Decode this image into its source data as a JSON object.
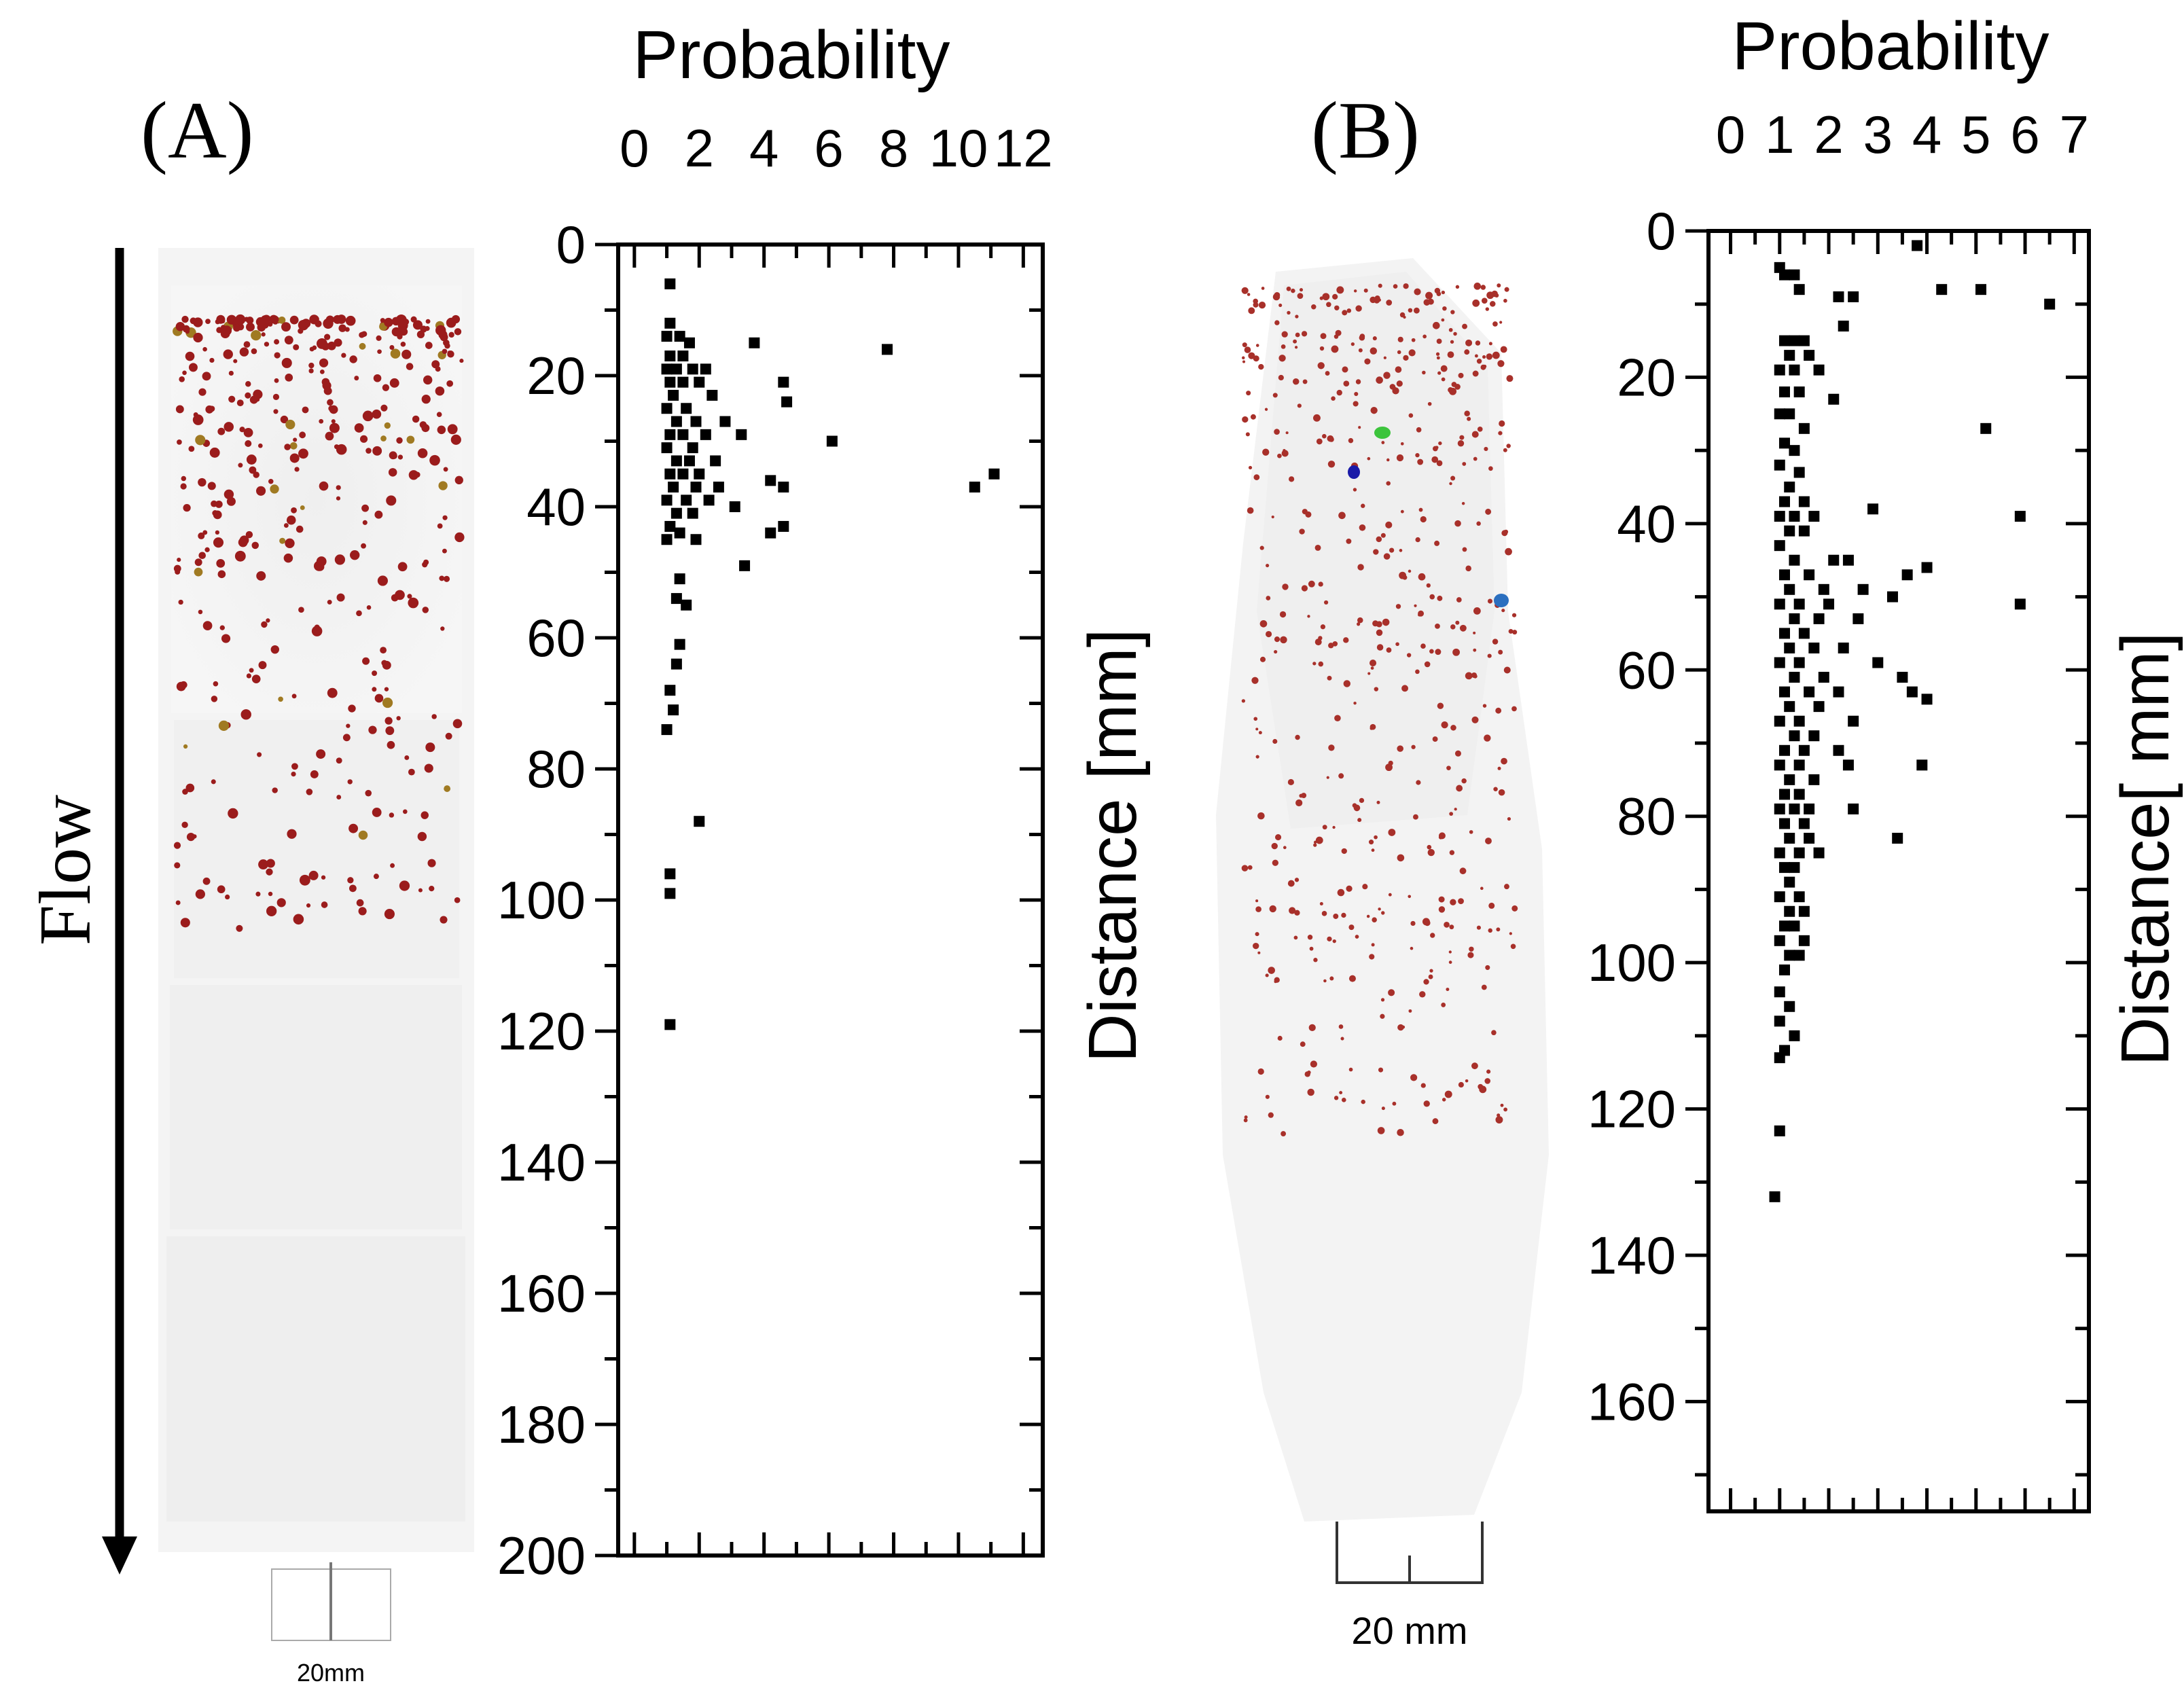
{
  "panels": {
    "a_label": "(A)",
    "b_label": "(B)",
    "flow_label": "Flow",
    "scale_a": "20mm",
    "scale_b": "20 mm"
  },
  "chart_data": [
    {
      "type": "scatter",
      "panel": "A",
      "title": "Probability",
      "xlabel": "Probability",
      "ylabel": "Distance [mm]",
      "xlim": [
        -0.5,
        12.6
      ],
      "ylim": [
        0,
        200
      ],
      "y_inverted": true,
      "x_ticks": [
        0,
        2,
        4,
        6,
        8,
        10,
        12
      ],
      "x_tick_labels": [
        "0",
        "2",
        "4",
        "6",
        "8",
        "10",
        "12"
      ],
      "y_ticks": [
        0,
        20,
        40,
        60,
        80,
        100,
        120,
        140,
        160,
        180,
        200
      ],
      "y_tick_labels": [
        "0",
        "20",
        "40",
        "60",
        "80",
        "100",
        "120",
        "140",
        "160",
        "180",
        "200"
      ],
      "points": [
        [
          1.1,
          6
        ],
        [
          1.1,
          12
        ],
        [
          1.0,
          14
        ],
        [
          1.4,
          14
        ],
        [
          1.7,
          15
        ],
        [
          1.1,
          17
        ],
        [
          1.5,
          17
        ],
        [
          1.0,
          19
        ],
        [
          1.3,
          19
        ],
        [
          1.8,
          19
        ],
        [
          2.2,
          19
        ],
        [
          1.1,
          21
        ],
        [
          1.5,
          21
        ],
        [
          2.0,
          21
        ],
        [
          1.2,
          23
        ],
        [
          2.4,
          23
        ],
        [
          1.0,
          25
        ],
        [
          1.6,
          25
        ],
        [
          1.3,
          27
        ],
        [
          1.9,
          27
        ],
        [
          2.8,
          27
        ],
        [
          1.1,
          29
        ],
        [
          1.5,
          29
        ],
        [
          2.2,
          29
        ],
        [
          1.0,
          31
        ],
        [
          1.8,
          31
        ],
        [
          1.3,
          33
        ],
        [
          1.7,
          33
        ],
        [
          2.5,
          33
        ],
        [
          1.1,
          35
        ],
        [
          1.5,
          35
        ],
        [
          2.0,
          35
        ],
        [
          1.2,
          37
        ],
        [
          1.9,
          37
        ],
        [
          2.6,
          37
        ],
        [
          1.0,
          39
        ],
        [
          1.6,
          39
        ],
        [
          2.3,
          39
        ],
        [
          1.3,
          41
        ],
        [
          1.8,
          41
        ],
        [
          1.1,
          43
        ],
        [
          1.4,
          44
        ],
        [
          1.0,
          45
        ],
        [
          1.9,
          45
        ],
        [
          3.3,
          29
        ],
        [
          3.7,
          15
        ],
        [
          4.6,
          21
        ],
        [
          4.7,
          24
        ],
        [
          6.1,
          30
        ],
        [
          7.8,
          16
        ],
        [
          4.2,
          36
        ],
        [
          4.6,
          37
        ],
        [
          3.1,
          40
        ],
        [
          4.2,
          44
        ],
        [
          4.6,
          43
        ],
        [
          3.4,
          49
        ],
        [
          10.5,
          37
        ],
        [
          11.1,
          35
        ],
        [
          1.4,
          51
        ],
        [
          1.3,
          54
        ],
        [
          1.6,
          55
        ],
        [
          1.4,
          61
        ],
        [
          1.3,
          64
        ],
        [
          1.1,
          68
        ],
        [
          1.2,
          71
        ],
        [
          1.0,
          74
        ],
        [
          2.0,
          88
        ],
        [
          1.1,
          96
        ],
        [
          1.1,
          99
        ],
        [
          1.1,
          119
        ]
      ]
    },
    {
      "type": "scatter",
      "panel": "B",
      "title": "Probability",
      "xlabel": "Probability",
      "ylabel": "Distance[ mm]",
      "xlim": [
        -0.45,
        7.3
      ],
      "ylim": [
        0,
        175
      ],
      "y_inverted": true,
      "x_ticks": [
        0,
        1,
        2,
        3,
        4,
        5,
        6,
        7
      ],
      "x_tick_labels": [
        "0",
        "1",
        "2",
        "3",
        "4",
        "5",
        "6",
        "7"
      ],
      "y_ticks": [
        0,
        20,
        40,
        60,
        80,
        100,
        120,
        140,
        160
      ],
      "y_tick_labels": [
        "0",
        "20",
        "40",
        "60",
        "80",
        "100",
        "120",
        "140",
        "160"
      ],
      "points": [
        [
          3.8,
          2
        ],
        [
          1.0,
          5
        ],
        [
          1.1,
          6
        ],
        [
          1.3,
          6
        ],
        [
          1.4,
          8
        ],
        [
          2.2,
          9
        ],
        [
          2.5,
          9
        ],
        [
          4.3,
          8
        ],
        [
          5.1,
          8
        ],
        [
          6.5,
          10
        ],
        [
          2.3,
          13
        ],
        [
          1.1,
          15
        ],
        [
          1.3,
          15
        ],
        [
          1.5,
          15
        ],
        [
          1.2,
          17
        ],
        [
          1.6,
          17
        ],
        [
          1.0,
          19
        ],
        [
          1.3,
          19
        ],
        [
          1.8,
          19
        ],
        [
          1.1,
          22
        ],
        [
          1.4,
          22
        ],
        [
          2.1,
          23
        ],
        [
          1.0,
          25
        ],
        [
          1.2,
          25
        ],
        [
          1.5,
          27
        ],
        [
          5.2,
          27
        ],
        [
          1.1,
          29
        ],
        [
          1.3,
          30
        ],
        [
          1.0,
          32
        ],
        [
          1.4,
          33
        ],
        [
          1.2,
          35
        ],
        [
          1.1,
          37
        ],
        [
          1.5,
          37
        ],
        [
          1.0,
          39
        ],
        [
          1.3,
          39
        ],
        [
          1.7,
          39
        ],
        [
          2.9,
          38
        ],
        [
          1.2,
          41
        ],
        [
          1.5,
          41
        ],
        [
          1.0,
          43
        ],
        [
          1.3,
          45
        ],
        [
          2.1,
          45
        ],
        [
          2.4,
          45
        ],
        [
          1.1,
          47
        ],
        [
          1.6,
          47
        ],
        [
          4.0,
          46
        ],
        [
          3.6,
          47
        ],
        [
          1.2,
          49
        ],
        [
          1.9,
          49
        ],
        [
          2.7,
          49
        ],
        [
          1.0,
          51
        ],
        [
          1.4,
          51
        ],
        [
          2.0,
          51
        ],
        [
          3.3,
          50
        ],
        [
          5.9,
          51
        ],
        [
          1.3,
          53
        ],
        [
          1.8,
          53
        ],
        [
          2.6,
          53
        ],
        [
          1.1,
          55
        ],
        [
          1.5,
          55
        ],
        [
          1.2,
          57
        ],
        [
          1.7,
          57
        ],
        [
          2.3,
          57
        ],
        [
          1.0,
          59
        ],
        [
          1.4,
          59
        ],
        [
          3.0,
          59
        ],
        [
          1.3,
          61
        ],
        [
          1.9,
          61
        ],
        [
          3.5,
          61
        ],
        [
          1.1,
          63
        ],
        [
          1.6,
          63
        ],
        [
          2.2,
          63
        ],
        [
          3.7,
          63
        ],
        [
          4.0,
          64
        ],
        [
          1.2,
          65
        ],
        [
          1.8,
          65
        ],
        [
          1.0,
          67
        ],
        [
          1.4,
          67
        ],
        [
          2.5,
          67
        ],
        [
          1.3,
          69
        ],
        [
          1.7,
          69
        ],
        [
          1.1,
          71
        ],
        [
          1.5,
          71
        ],
        [
          2.2,
          71
        ],
        [
          1.0,
          73
        ],
        [
          1.4,
          73
        ],
        [
          2.4,
          73
        ],
        [
          3.9,
          73
        ],
        [
          1.2,
          75
        ],
        [
          1.7,
          75
        ],
        [
          1.1,
          77
        ],
        [
          1.4,
          77
        ],
        [
          1.0,
          79
        ],
        [
          1.3,
          79
        ],
        [
          1.6,
          79
        ],
        [
          2.5,
          79
        ],
        [
          1.1,
          81
        ],
        [
          1.5,
          81
        ],
        [
          1.2,
          83
        ],
        [
          1.6,
          83
        ],
        [
          1.0,
          85
        ],
        [
          1.4,
          85
        ],
        [
          1.8,
          85
        ],
        [
          1.1,
          87
        ],
        [
          1.3,
          87
        ],
        [
          1.2,
          89
        ],
        [
          1.0,
          91
        ],
        [
          1.4,
          91
        ],
        [
          1.2,
          93
        ],
        [
          1.5,
          93
        ],
        [
          1.1,
          95
        ],
        [
          1.3,
          95
        ],
        [
          1.0,
          97
        ],
        [
          1.5,
          97
        ],
        [
          1.2,
          99
        ],
        [
          1.4,
          99
        ],
        [
          1.1,
          101
        ],
        [
          1.0,
          104
        ],
        [
          1.2,
          106
        ],
        [
          1.0,
          108
        ],
        [
          1.3,
          110
        ],
        [
          1.1,
          112
        ],
        [
          1.0,
          113
        ],
        [
          3.4,
          83
        ],
        [
          5.9,
          39
        ],
        [
          1.0,
          123
        ],
        [
          0.9,
          132
        ]
      ]
    }
  ]
}
